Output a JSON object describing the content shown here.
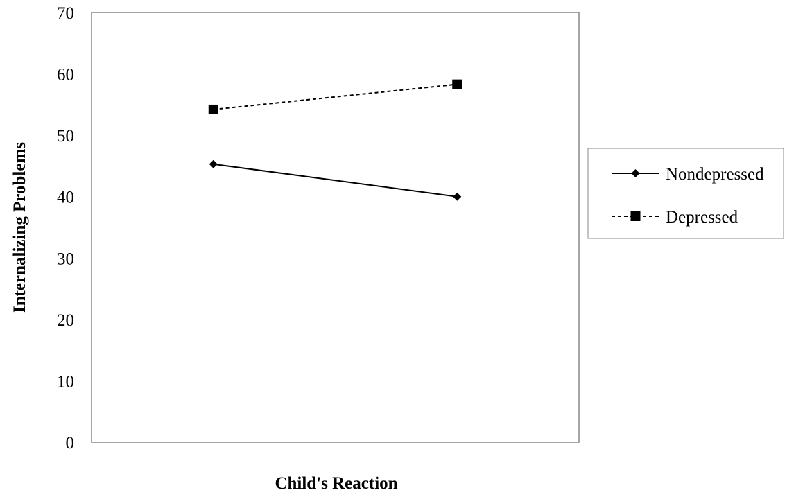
{
  "chart_data": {
    "type": "line",
    "title": "",
    "xlabel": "Child's Reaction",
    "ylabel": "Internalizing Problems",
    "categories": [
      "",
      ""
    ],
    "ylim": [
      0,
      70
    ],
    "yticks": [
      0,
      10,
      20,
      30,
      40,
      50,
      60,
      70
    ],
    "grid": false,
    "legend_position": "right",
    "series": [
      {
        "name": "Nondepressed",
        "values": [
          45.3,
          40.0
        ],
        "marker": "diamond",
        "line_style": "solid",
        "color": "#000000"
      },
      {
        "name": "Depressed",
        "values": [
          54.2,
          58.3
        ],
        "marker": "square",
        "line_style": "dashed",
        "color": "#000000"
      }
    ]
  }
}
